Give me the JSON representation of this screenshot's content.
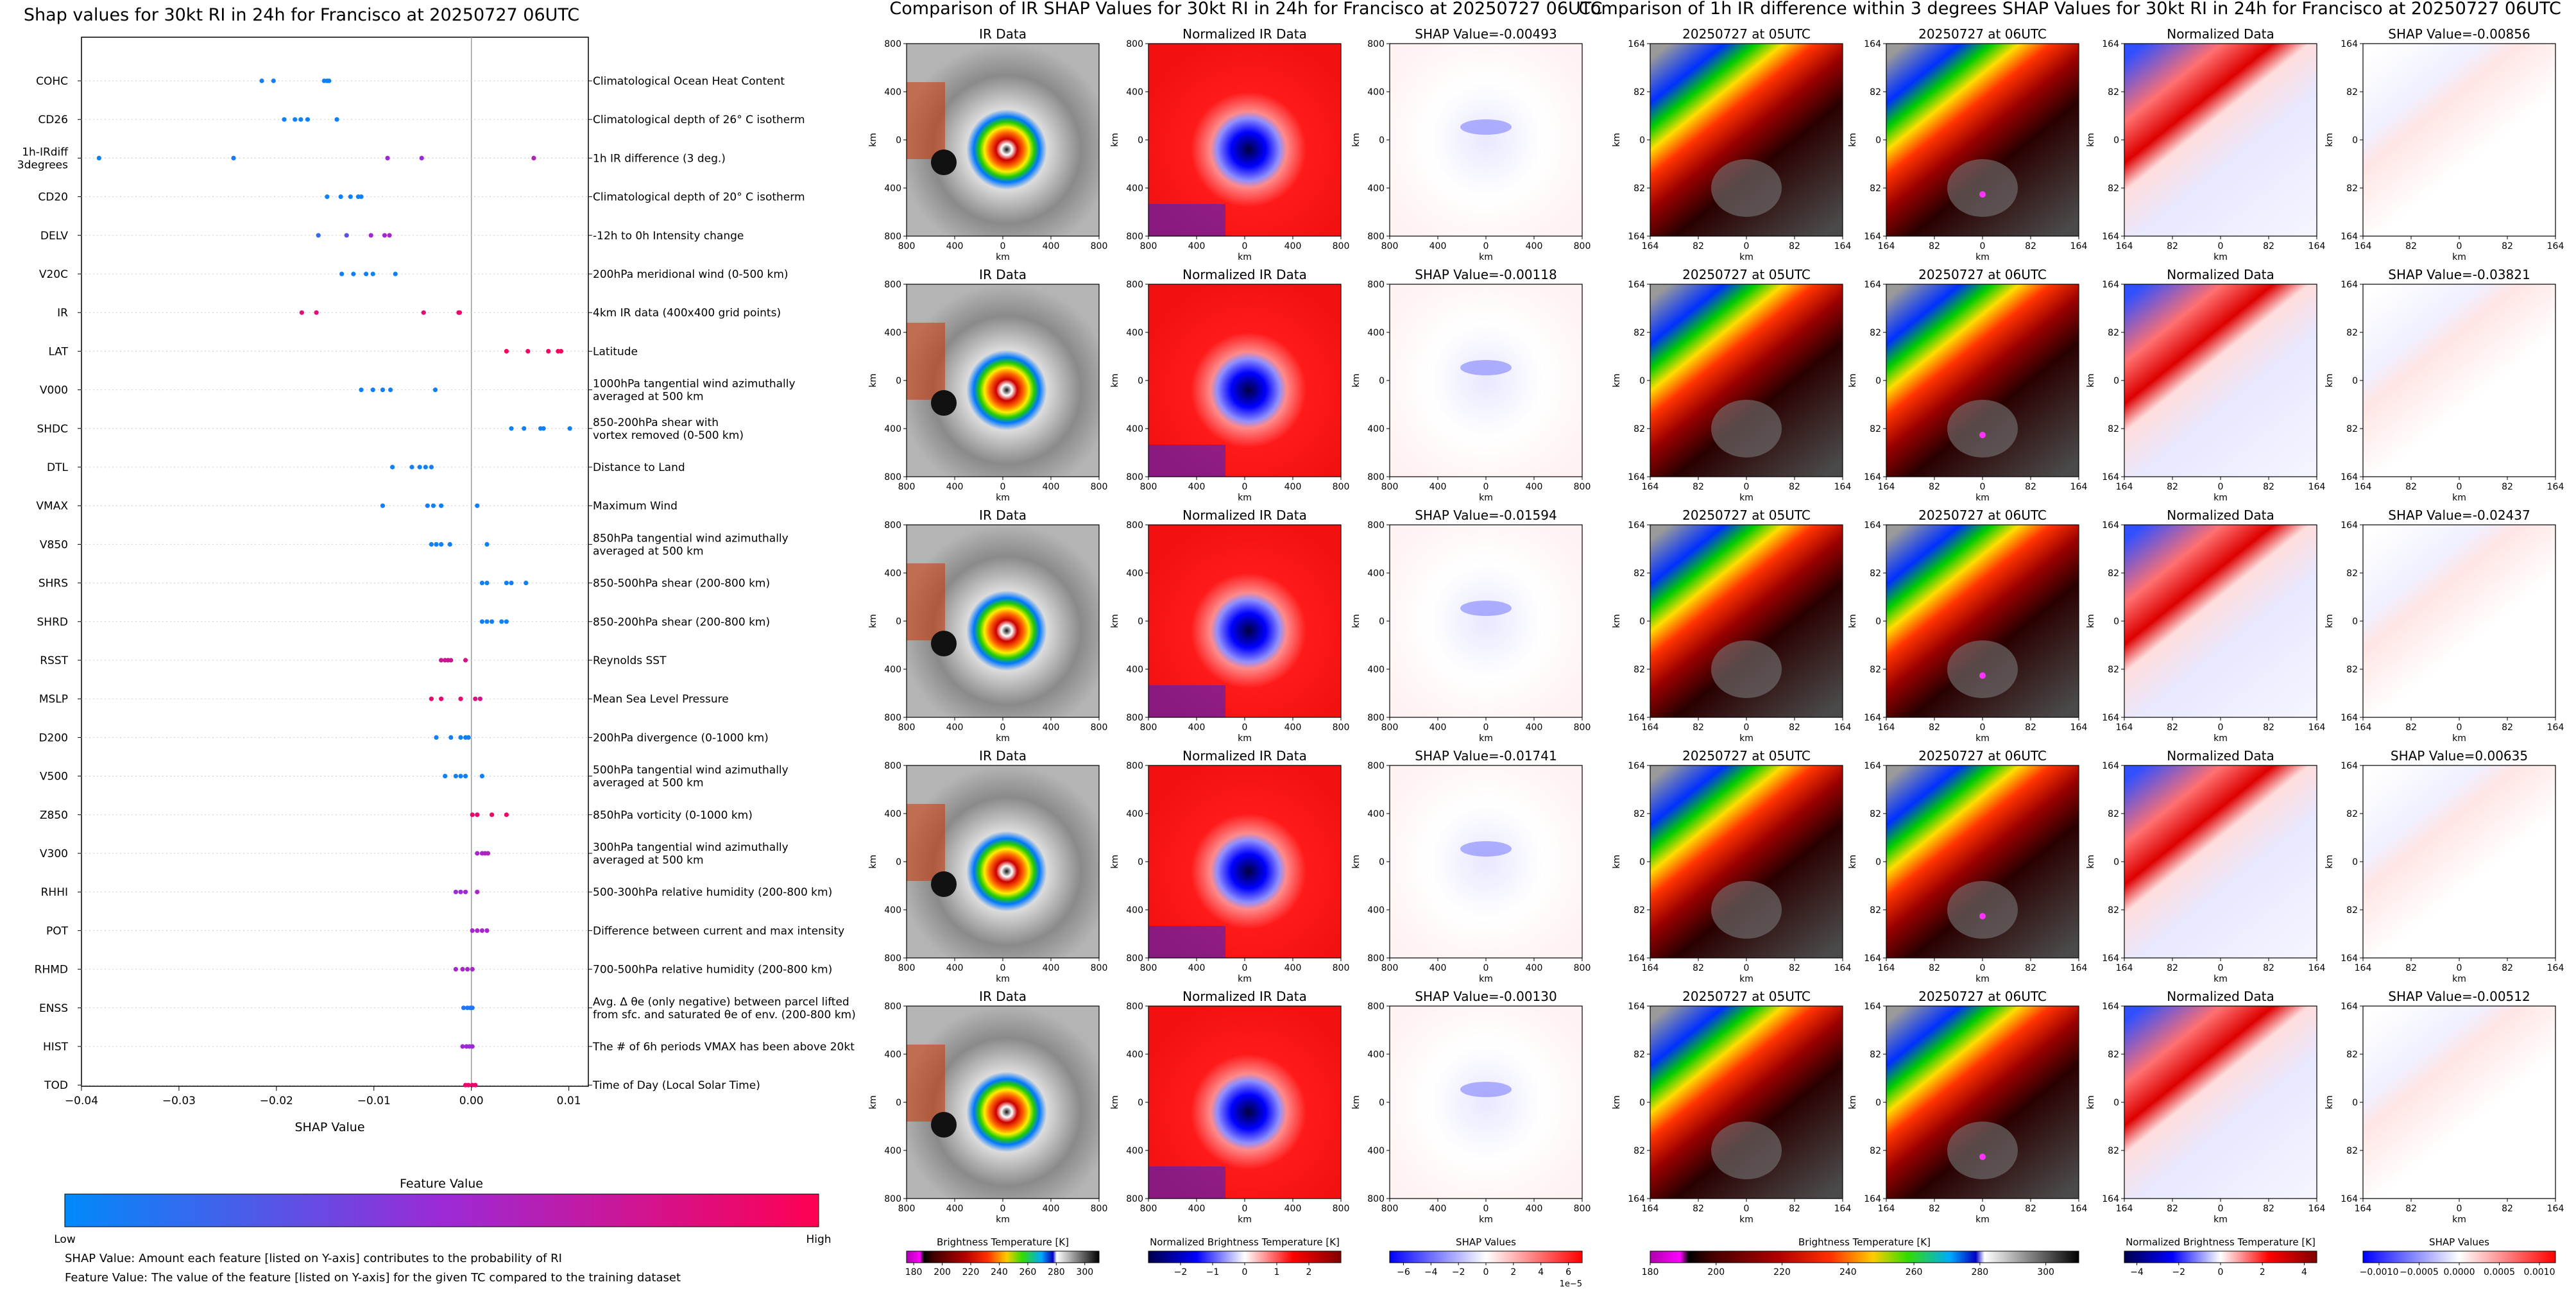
{
  "left_panel": {
    "title": "Shap values for 30kt RI in 24h for Francisco at 20250727 06UTC",
    "xlabel": "SHAP Value",
    "colorbar_title": "Feature Value",
    "colorbar_low": "Low",
    "colorbar_high": "High",
    "notes": [
      "SHAP Value: Amount each feature [listed on Y-axis] contributes to the probability of RI",
      "Feature Value: The value of the feature [listed on Y-axis] for the given TC compared to the training dataset"
    ]
  },
  "ir_group_title": "Comparison of IR SHAP Values for 30kt RI in 24h for Francisco at 20250727 06UTC",
  "diff_group_title": "Comparison of 1h IR difference within 3 degrees SHAP Values for 30kt RI in 24h for Francisco at 20250727 06UTC",
  "ir_rows": [
    {
      "ir": "IR Data",
      "norm": "Normalized IR Data",
      "shap": "SHAP Value=-0.00493"
    },
    {
      "ir": "IR Data",
      "norm": "Normalized IR Data",
      "shap": "SHAP Value=-0.00118"
    },
    {
      "ir": "IR Data",
      "norm": "Normalized IR Data",
      "shap": "SHAP Value=-0.01594"
    },
    {
      "ir": "IR Data",
      "norm": "Normalized IR Data",
      "shap": "SHAP Value=-0.01741"
    },
    {
      "ir": "IR Data",
      "norm": "Normalized IR Data",
      "shap": "SHAP Value=-0.00130"
    }
  ],
  "diff_rows": [
    {
      "t1": "20250727 at 05UTC",
      "t2": "20250727 at 06UTC",
      "norm": "Normalized Data",
      "shap": "SHAP Value=-0.00856"
    },
    {
      "t1": "20250727 at 05UTC",
      "t2": "20250727 at 06UTC",
      "norm": "Normalized Data",
      "shap": "SHAP Value=-0.03821"
    },
    {
      "t1": "20250727 at 05UTC",
      "t2": "20250727 at 06UTC",
      "norm": "Normalized Data",
      "shap": "SHAP Value=-0.02437"
    },
    {
      "t1": "20250727 at 05UTC",
      "t2": "20250727 at 06UTC",
      "norm": "Normalized Data",
      "shap": "SHAP Value=0.00635"
    },
    {
      "t1": "20250727 at 05UTC",
      "t2": "20250727 at 06UTC",
      "norm": "Normalized Data",
      "shap": "SHAP Value=-0.00512"
    }
  ],
  "ir_axes": {
    "ylabel": "km",
    "xlabel": "km",
    "yticks": [
      "800",
      "400",
      "0",
      "400",
      "800"
    ],
    "xticks": [
      "800",
      "400",
      "0",
      "400",
      "800"
    ]
  },
  "diff_axes": {
    "ylabel": "km",
    "xlabel": "km",
    "yticks": [
      "164",
      "82",
      "0",
      "82",
      "164"
    ],
    "xticks": [
      "164",
      "82",
      "0",
      "82",
      "164"
    ]
  },
  "colorbars": [
    {
      "label": "Brightness Temperature [K]",
      "ticks": [
        "180",
        "200",
        "220",
        "240",
        "260",
        "280",
        "300"
      ],
      "min": 175,
      "max": 310,
      "scheme": "ir"
    },
    {
      "label": "Normalized Brightness Temperature [K]",
      "ticks": [
        "−2",
        "−1",
        "0",
        "1",
        "2"
      ],
      "min": -3,
      "max": 3,
      "scheme": "seismic"
    },
    {
      "label": "SHAP Values",
      "ticks": [
        "−6",
        "−4",
        "−2",
        "0",
        "2",
        "4",
        "6"
      ],
      "min": -7,
      "max": 7,
      "scheme": "bwr",
      "offset": "1e−5"
    },
    {
      "label": "Brightness Temperature [K]",
      "ticks": [
        "180",
        "200",
        "220",
        "240",
        "260",
        "280",
        "300"
      ],
      "min": 180,
      "max": 310,
      "scheme": "ir"
    },
    {
      "label": "Normalized Brightness Temperature [K]",
      "ticks": [
        "−4",
        "−2",
        "0",
        "2",
        "4"
      ],
      "min": -4.6,
      "max": 4.6,
      "scheme": "seismic"
    },
    {
      "label": "SHAP Values",
      "ticks": [
        "−0.0010",
        "−0.0005",
        "0.0000",
        "0.0005",
        "0.0010"
      ],
      "min": -0.0012,
      "max": 0.0012,
      "scheme": "bwr"
    }
  ],
  "chart_data": {
    "type": "scatter",
    "title": "Shap values for 30kt RI in 24h for Francisco at 20250727 06UTC",
    "xlabel": "SHAP Value",
    "xlim": [
      -0.04,
      0.012
    ],
    "xticks": [
      -0.04,
      -0.03,
      -0.02,
      -0.01,
      0.0,
      0.01
    ],
    "xtick_labels": [
      "−0.04",
      "−0.03",
      "−0.02",
      "−0.01",
      "0.00",
      "0.01"
    ],
    "colors": {
      "low": "#008afb",
      "mid": "#9b2ad6",
      "high": "#ff0052"
    },
    "features": [
      {
        "name": [
          "COHC"
        ],
        "desc": [
          "Climatological Ocean Heat Content"
        ],
        "x": [
          -0.0215,
          -0.0203,
          -0.0151,
          -0.0148,
          -0.0146
        ],
        "v": [
          0.05,
          0.05,
          0.05,
          0.05,
          0.05
        ]
      },
      {
        "name": [
          "CD26"
        ],
        "desc": [
          "Climatological depth of 26° C isotherm"
        ],
        "x": [
          -0.0192,
          -0.0181,
          -0.0175,
          -0.0168,
          -0.0138
        ],
        "v": [
          0.05,
          0.05,
          0.05,
          0.05,
          0.05
        ]
      },
      {
        "name": [
          "1h-IRdiff",
          "3degrees"
        ],
        "desc": [
          "1h IR difference (3 deg.)"
        ],
        "x": [
          -0.0382,
          -0.0244,
          -0.0086,
          -0.0051,
          0.0064
        ],
        "v": [
          0.05,
          0.08,
          0.5,
          0.5,
          0.6
        ]
      },
      {
        "name": [
          "CD20"
        ],
        "desc": [
          "Climatological depth of 20° C isotherm"
        ],
        "x": [
          -0.0148,
          -0.0134,
          -0.0124,
          -0.0116,
          -0.0113
        ],
        "v": [
          0.05,
          0.05,
          0.05,
          0.05,
          0.05
        ]
      },
      {
        "name": [
          "DELV"
        ],
        "desc": [
          "-12h to 0h Intensity change"
        ],
        "x": [
          -0.0157,
          -0.0128,
          -0.0103,
          -0.0089,
          -0.0084
        ],
        "v": [
          0.15,
          0.3,
          0.55,
          0.55,
          0.55
        ]
      },
      {
        "name": [
          "V20C"
        ],
        "desc": [
          "200hPa meridional wind (0-500 km)"
        ],
        "x": [
          -0.0133,
          -0.0121,
          -0.0108,
          -0.0101,
          -0.0078
        ],
        "v": [
          0.05,
          0.05,
          0.05,
          0.05,
          0.05
        ]
      },
      {
        "name": [
          "IR"
        ],
        "desc": [
          "4km IR data (400x400 grid points)"
        ],
        "x": [
          -0.0174,
          -0.0159,
          -0.0049,
          -0.0013,
          -0.0012
        ],
        "v": [
          0.85,
          0.85,
          0.85,
          0.9,
          0.9
        ]
      },
      {
        "name": [
          "LAT"
        ],
        "desc": [
          "Latitude"
        ],
        "x": [
          0.0036,
          0.0058,
          0.0079,
          0.0089,
          0.0092
        ],
        "v": [
          0.95,
          0.95,
          0.95,
          0.95,
          0.95
        ]
      },
      {
        "name": [
          "V000"
        ],
        "desc": [
          "1000hPa tangential wind azimuthally",
          "averaged at 500 km"
        ],
        "x": [
          -0.0113,
          -0.0101,
          -0.0091,
          -0.0083,
          -0.0037
        ],
        "v": [
          0.05,
          0.05,
          0.05,
          0.05,
          0.05
        ]
      },
      {
        "name": [
          "SHDC"
        ],
        "desc": [
          "850-200hPa shear with",
          "vortex removed (0-500 km)"
        ],
        "x": [
          0.0041,
          0.0054,
          0.0071,
          0.0074,
          0.0101
        ],
        "v": [
          0.05,
          0.05,
          0.05,
          0.05,
          0.05
        ]
      },
      {
        "name": [
          "DTL"
        ],
        "desc": [
          "Distance to Land"
        ],
        "x": [
          -0.0081,
          -0.0061,
          -0.0053,
          -0.0047,
          -0.0041
        ],
        "v": [
          0.05,
          0.05,
          0.05,
          0.05,
          0.05
        ]
      },
      {
        "name": [
          "VMAX"
        ],
        "desc": [
          "Maximum Wind"
        ],
        "x": [
          -0.0091,
          -0.0045,
          -0.0039,
          -0.0031,
          0.0006
        ],
        "v": [
          0.05,
          0.05,
          0.05,
          0.05,
          0.05
        ]
      },
      {
        "name": [
          "V850"
        ],
        "desc": [
          "850hPa tangential wind azimuthally",
          "averaged at 500 km"
        ],
        "x": [
          -0.0041,
          -0.0036,
          -0.0031,
          -0.0022,
          0.0016
        ],
        "v": [
          0.05,
          0.05,
          0.05,
          0.05,
          0.05
        ]
      },
      {
        "name": [
          "SHRS"
        ],
        "desc": [
          "850-500hPa shear (200-800 km)"
        ],
        "x": [
          0.0011,
          0.0016,
          0.0036,
          0.0041,
          0.0056
        ],
        "v": [
          0.05,
          0.05,
          0.05,
          0.05,
          0.05
        ]
      },
      {
        "name": [
          "SHRD"
        ],
        "desc": [
          "850-200hPa shear (200-800 km)"
        ],
        "x": [
          0.0011,
          0.0016,
          0.0021,
          0.0031,
          0.0036
        ],
        "v": [
          0.05,
          0.05,
          0.05,
          0.05,
          0.05
        ]
      },
      {
        "name": [
          "RSST"
        ],
        "desc": [
          "Reynolds SST"
        ],
        "x": [
          -0.0031,
          -0.0027,
          -0.0024,
          -0.0021,
          -0.0006
        ],
        "v": [
          0.75,
          0.75,
          0.75,
          0.75,
          0.8
        ]
      },
      {
        "name": [
          "MSLP"
        ],
        "desc": [
          "Mean Sea Level Pressure"
        ],
        "x": [
          -0.0041,
          -0.0031,
          -0.0011,
          0.0004,
          0.0009
        ],
        "v": [
          0.9,
          0.9,
          0.9,
          0.8,
          0.8
        ]
      },
      {
        "name": [
          "D200"
        ],
        "desc": [
          "200hPa divergence (0-1000 km)"
        ],
        "x": [
          -0.0036,
          -0.0021,
          -0.0011,
          -0.0006,
          -0.0003
        ],
        "v": [
          0.05,
          0.05,
          0.05,
          0.05,
          0.05
        ]
      },
      {
        "name": [
          "V500"
        ],
        "desc": [
          "500hPa tangential wind azimuthally",
          "averaged at 500 km"
        ],
        "x": [
          -0.0027,
          -0.0016,
          -0.0011,
          -0.0006,
          0.0011
        ],
        "v": [
          0.05,
          0.05,
          0.05,
          0.05,
          0.05
        ]
      },
      {
        "name": [
          "Z850"
        ],
        "desc": [
          "850hPa vorticity (0-1000 km)"
        ],
        "x": [
          0.0001,
          0.0006,
          0.0021,
          0.0036
        ],
        "v": [
          0.9,
          0.9,
          0.9,
          0.9
        ]
      },
      {
        "name": [
          "V300"
        ],
        "desc": [
          "300hPa tangential wind azimuthally",
          "averaged at 500 km"
        ],
        "x": [
          0.0006,
          0.0011,
          0.0014,
          0.0017
        ],
        "v": [
          0.55,
          0.55,
          0.6,
          0.6
        ]
      },
      {
        "name": [
          "RHHI"
        ],
        "desc": [
          "500-300hPa relative humidity (200-800 km)"
        ],
        "x": [
          -0.0016,
          -0.0011,
          -0.0006,
          0.0006
        ],
        "v": [
          0.5,
          0.5,
          0.5,
          0.55
        ]
      },
      {
        "name": [
          "POT"
        ],
        "desc": [
          "Difference between current and max intensity"
        ],
        "x": [
          0.0001,
          0.0006,
          0.0011,
          0.0016
        ],
        "v": [
          0.55,
          0.55,
          0.55,
          0.55
        ]
      },
      {
        "name": [
          "RHMD"
        ],
        "desc": [
          "700-500hPa relative humidity (200-800 km)"
        ],
        "x": [
          -0.0016,
          -0.0009,
          -0.0004,
          0.0001
        ],
        "v": [
          0.55,
          0.55,
          0.55,
          0.55
        ]
      },
      {
        "name": [
          "ENSS"
        ],
        "desc": [
          "Avg. Δ θe (only negative) between parcel lifted",
          "from sfc. and saturated θe of env. (200-800 km)"
        ],
        "x": [
          -0.0008,
          -0.0004,
          -0.0001,
          0.0001
        ],
        "v": [
          0.1,
          0.1,
          0.1,
          0.1
        ]
      },
      {
        "name": [
          "HIST"
        ],
        "desc": [
          "The # of 6h periods VMAX has been above 20kt"
        ],
        "x": [
          -0.0009,
          -0.0005,
          -0.0002,
          0.0001
        ],
        "v": [
          0.5,
          0.5,
          0.5,
          0.5
        ]
      },
      {
        "name": [
          "TOD"
        ],
        "desc": [
          "Time of Day (Local Solar Time)"
        ],
        "x": [
          -0.0006,
          -0.0003,
          0.0001,
          0.0004
        ],
        "v": [
          0.9,
          0.9,
          0.9,
          0.9
        ]
      }
    ]
  }
}
